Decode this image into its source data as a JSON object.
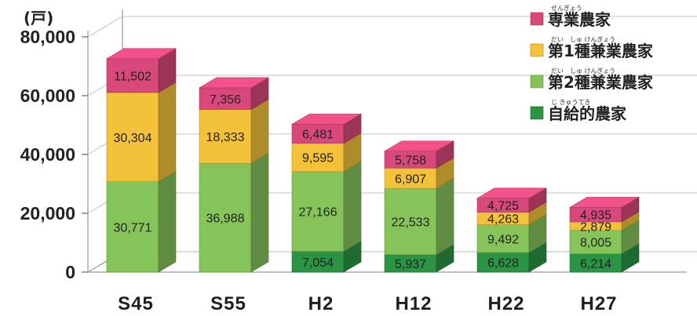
{
  "chart_data": {
    "type": "bar",
    "stacked": true,
    "three_d": true,
    "unit_label": "(戸)",
    "categories": [
      "S45",
      "S55",
      "H2",
      "H12",
      "H22",
      "H27"
    ],
    "ylim": [
      0,
      80000
    ],
    "yticks": [
      {
        "value": 0,
        "label": "0"
      },
      {
        "value": 20000,
        "label": "20,000"
      },
      {
        "value": 40000,
        "label": "40,000"
      },
      {
        "value": 60000,
        "label": "60,000"
      },
      {
        "value": 80000,
        "label": "80,000"
      }
    ],
    "legend_position": "top-right",
    "legend_order": [
      3,
      2,
      1,
      0
    ],
    "series": [
      {
        "name": "自給的農家",
        "furigana": "じ きゅうてき",
        "color": "#2a9444",
        "values": [
          null,
          null,
          7054,
          5937,
          6628,
          6214
        ],
        "labels": [
          "",
          "",
          "7,054",
          "5,937",
          "6,628",
          "6,214"
        ]
      },
      {
        "name": "第2種兼業農家",
        "furigana": "だい　しゅ けんぎょう",
        "color": "#86c45a",
        "values": [
          30771,
          36988,
          27166,
          22533,
          9492,
          8005
        ],
        "labels": [
          "30,771",
          "36,988",
          "27,166",
          "22,533",
          "9,492",
          "8,005"
        ]
      },
      {
        "name": "第1種兼業農家",
        "furigana": "だい　しゅ けんぎょう",
        "color": "#f3c13a",
        "values": [
          30304,
          18333,
          9595,
          6907,
          4263,
          2879
        ],
        "labels": [
          "30,304",
          "18,333",
          "9,595",
          "6,907",
          "4,263",
          "2,879"
        ]
      },
      {
        "name": "専業農家",
        "furigana": "せんぎょう",
        "color": "#d9487a",
        "values": [
          11502,
          7356,
          6481,
          5758,
          4725,
          4935
        ],
        "labels": [
          "11,502",
          "7,356",
          "6,481",
          "5,758",
          "4,725",
          "4,935"
        ]
      }
    ],
    "grid": true
  }
}
